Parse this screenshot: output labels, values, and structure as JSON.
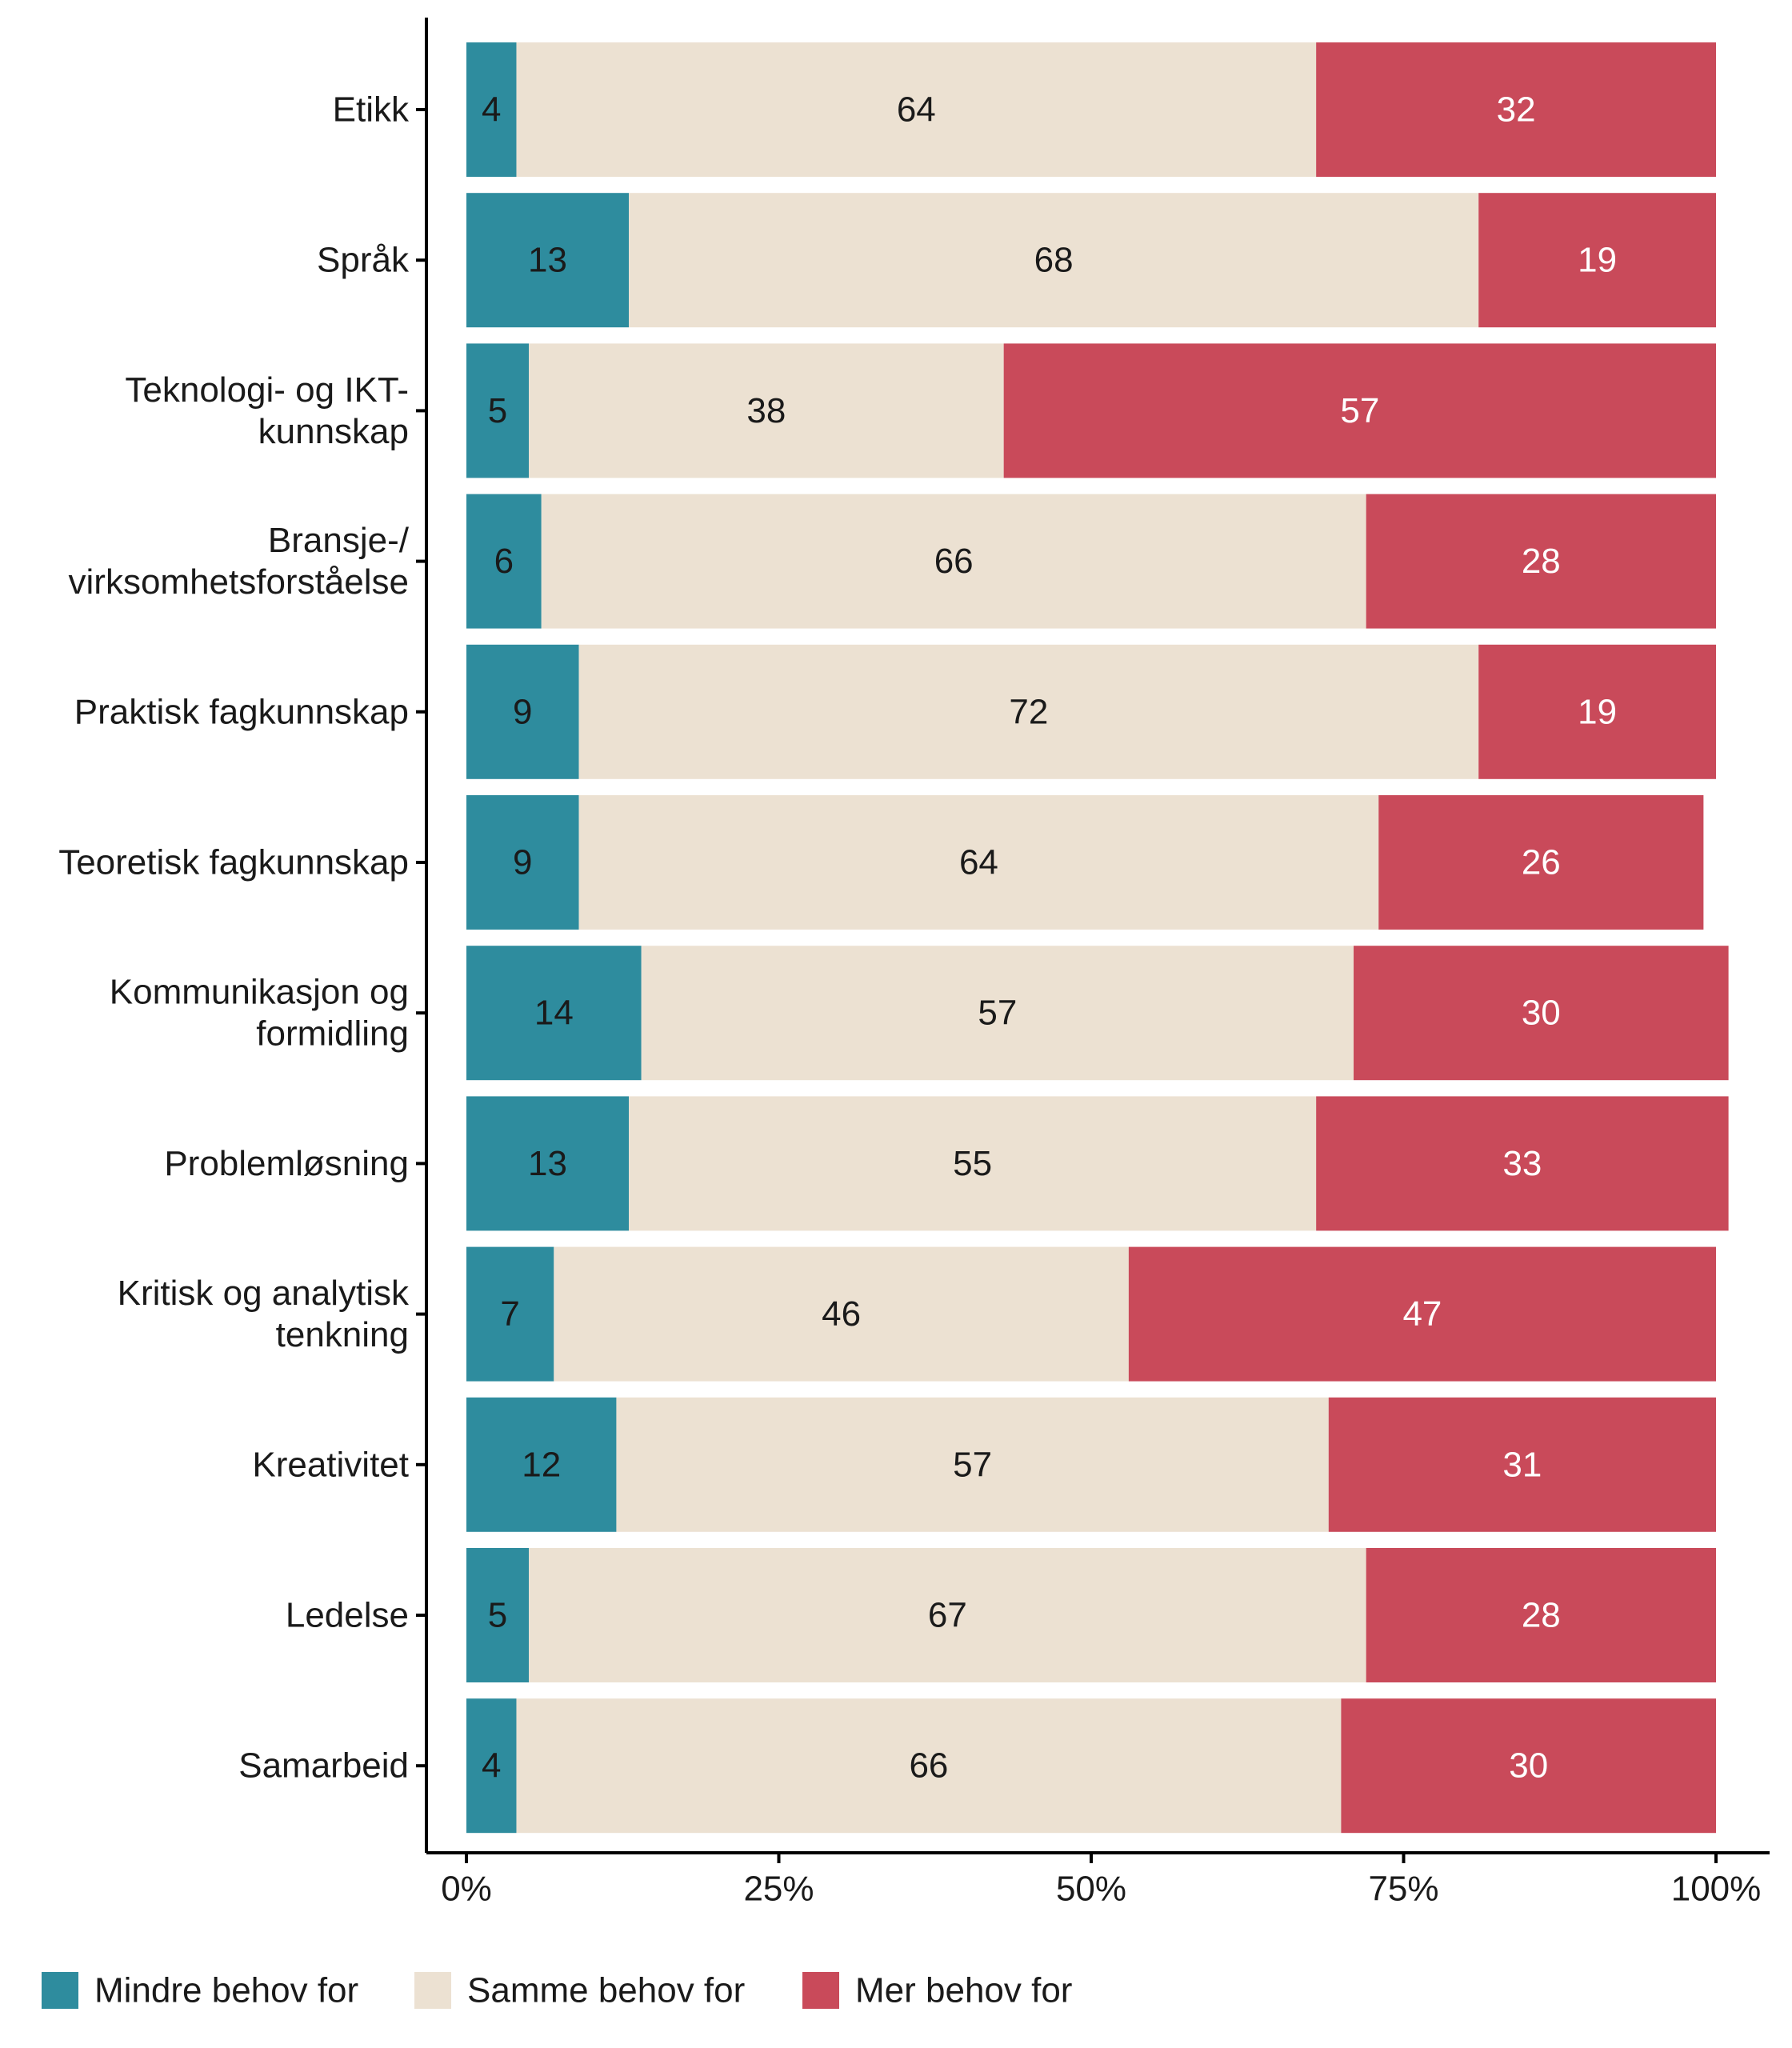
{
  "chart_data": {
    "type": "bar",
    "orientation": "horizontal",
    "stacked": true,
    "categories": [
      "Etikk",
      "Språk",
      "Teknologi- og IKT-\nkunnskap",
      "Bransje-/\nvirksomhetsforståelse",
      "Praktisk fagkunnskap",
      "Teoretisk fagkunnskap",
      "Kommunikasjon og\nformidling",
      "Problemløsning",
      "Kritisk og analytisk\ntenkning",
      "Kreativitet",
      "Ledelse",
      "Samarbeid"
    ],
    "series": [
      {
        "name": "Mindre behov for",
        "color": "#2e8c9e",
        "label_color": "#1a1a1a",
        "values": [
          4,
          13,
          5,
          6,
          9,
          9,
          14,
          13,
          7,
          12,
          5,
          4
        ]
      },
      {
        "name": "Samme behov for",
        "color": "#ece1d2",
        "label_color": "#1a1a1a",
        "values": [
          64,
          68,
          38,
          66,
          72,
          64,
          57,
          55,
          46,
          57,
          67,
          66
        ]
      },
      {
        "name": "Mer behov for",
        "color": "#c94a5a",
        "label_color": "#ffffff",
        "values": [
          32,
          19,
          57,
          28,
          19,
          26,
          30,
          33,
          47,
          31,
          28,
          30
        ]
      }
    ],
    "xlim": [
      0,
      100
    ],
    "x_ticks": [
      "0%",
      "25%",
      "50%",
      "75%",
      "100%"
    ],
    "x_tick_values": [
      0,
      25,
      50,
      75,
      100
    ],
    "legend_position": "bottom",
    "grid": false,
    "title": "",
    "xlabel": "",
    "ylabel": ""
  }
}
